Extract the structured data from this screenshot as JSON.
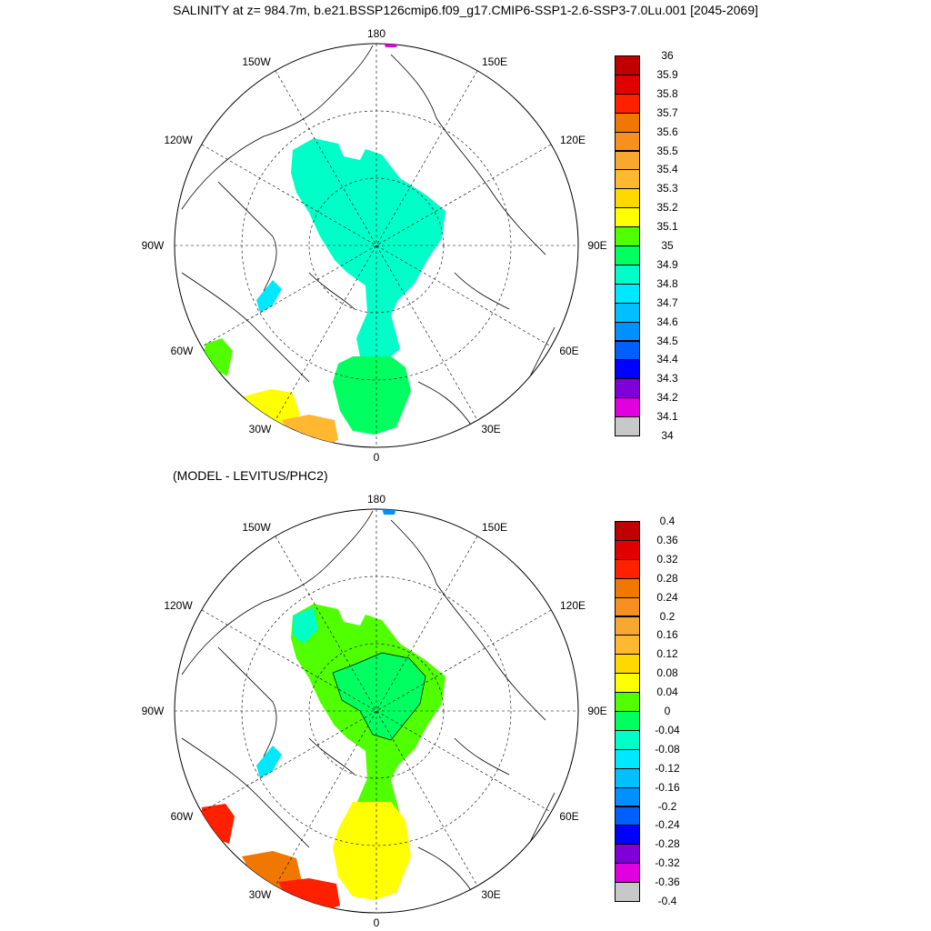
{
  "title": "SALINITY at z= 984.7m, b.e21.BSSP126cmip6.f09_g17.CMIP6-SSP1-2.6-SSP3-7.0Lu.001 [2045-2069]",
  "subtitle": "(MODEL - LEVITUS/PHC2)",
  "map_labels": {
    "lon_180": "180",
    "lon_150W": "150W",
    "lon_150E": "150E",
    "lon_120W": "120W",
    "lon_120E": "120E",
    "lon_90W": "90W",
    "lon_90E": "90E",
    "lon_60W": "60W",
    "lon_60E": "60E",
    "lon_30W": "30W",
    "lon_30E": "30E",
    "lon_0": "0"
  },
  "colorbar_top": {
    "labels": [
      "36",
      "35.9",
      "35.8",
      "35.7",
      "35.6",
      "35.5",
      "35.4",
      "35.3",
      "35.2",
      "35.1",
      "35",
      "34.9",
      "34.8",
      "34.7",
      "34.6",
      "34.5",
      "34.4",
      "34.3",
      "34.2",
      "34.1",
      "34"
    ]
  },
  "colorbar_bottom": {
    "labels": [
      "0.4",
      "0.36",
      "0.32",
      "0.28",
      "0.24",
      "0.2",
      "0.16",
      "0.12",
      "0.08",
      "0.04",
      "0",
      "-0.04",
      "-0.08",
      "-0.12",
      "-0.16",
      "-0.2",
      "-0.24",
      "-0.28",
      "-0.32",
      "-0.36",
      "-0.4"
    ]
  },
  "colors": {
    "palette": [
      "#c00000",
      "#e00000",
      "#ff2000",
      "#f07800",
      "#f89020",
      "#f8a830",
      "#ffb830",
      "#ffd800",
      "#ffff00",
      "#50ff00",
      "#00ff60",
      "#00ffc8",
      "#00e8ff",
      "#00c0ff",
      "#0090ff",
      "#0060ff",
      "#0000ff",
      "#8000d8",
      "#e000e0",
      "#c8c8c8",
      "#707070"
    ],
    "land": "#ffffff",
    "coast": "#000000"
  }
}
